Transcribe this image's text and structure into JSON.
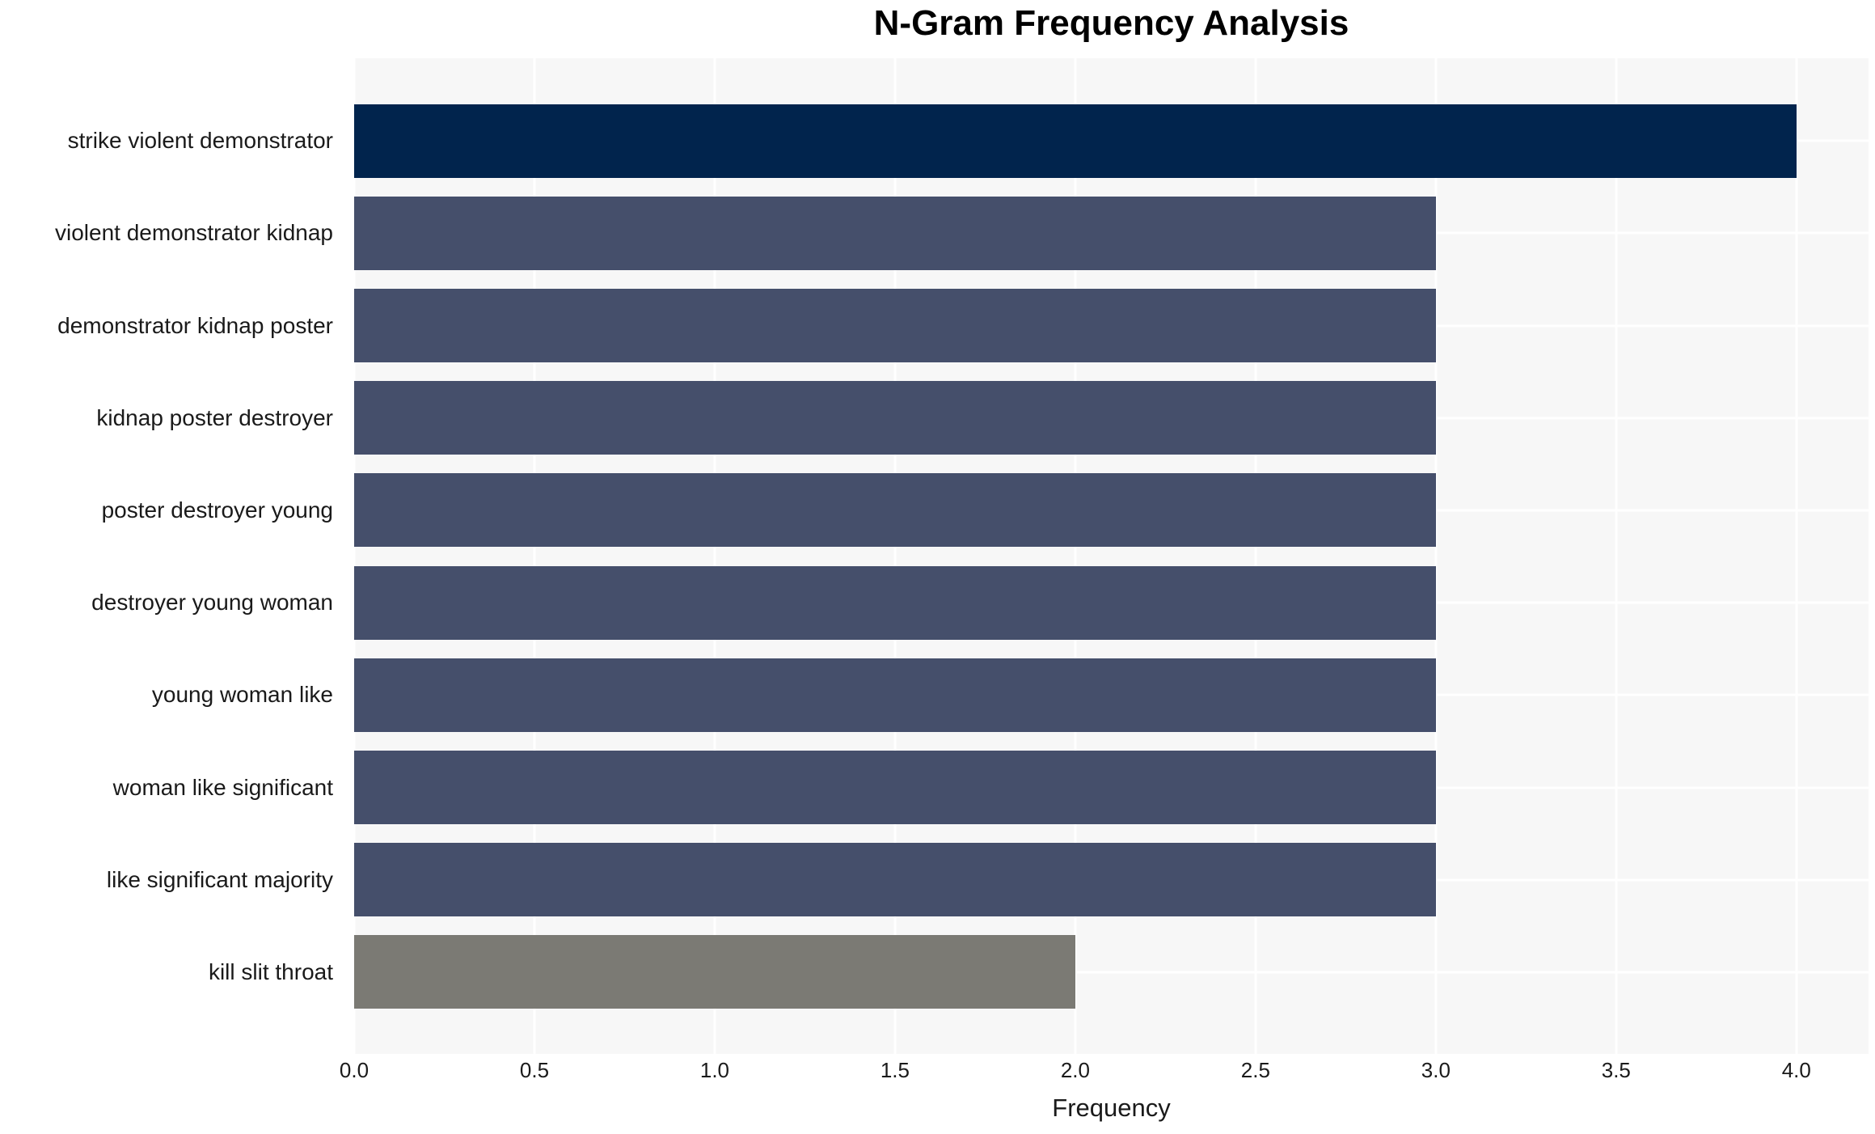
{
  "chart_data": {
    "type": "bar",
    "orientation": "horizontal",
    "title": "N-Gram Frequency Analysis",
    "xlabel": "Frequency",
    "ylabel": "",
    "categories": [
      "strike violent demonstrator",
      "violent demonstrator kidnap",
      "demonstrator kidnap poster",
      "kidnap poster destroyer",
      "poster destroyer young",
      "destroyer young woman",
      "young woman like",
      "woman like significant",
      "like significant majority",
      "kill slit throat"
    ],
    "values": [
      4,
      3,
      3,
      3,
      3,
      3,
      3,
      3,
      3,
      2
    ],
    "bar_colors": [
      "#01244D",
      "#454F6B",
      "#454F6B",
      "#454F6B",
      "#454F6B",
      "#454F6B",
      "#454F6B",
      "#454F6B",
      "#454F6B",
      "#7B7A74"
    ],
    "xticks": [
      "0.0",
      "0.5",
      "1.0",
      "1.5",
      "2.0",
      "2.5",
      "3.0",
      "3.5",
      "4.0"
    ],
    "xtick_values": [
      0,
      0.5,
      1,
      1.5,
      2,
      2.5,
      3,
      3.5,
      4
    ],
    "xlim": [
      0,
      4.2
    ],
    "grid": true,
    "legend": false,
    "colors": {
      "plot_background": "#F7F7F7",
      "figure_background": "#FFFFFF",
      "grid_line": "#FFFFFF",
      "highlight_bar": "#01244D",
      "default_bar": "#454F6B",
      "low_bar": "#7B7A74",
      "text": "#1a1a1a",
      "title_text": "#000000"
    }
  }
}
